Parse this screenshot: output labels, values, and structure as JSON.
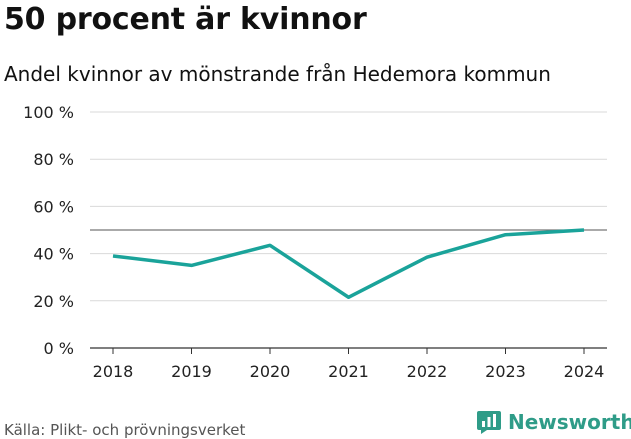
{
  "header": {
    "title": "50 procent är kvinnor",
    "subtitle": "Andel kvinnor av mönstrande från Hedemora kommun"
  },
  "footer": {
    "source": "Källa: Plikt- och prövningsverket",
    "brand": "Newsworthy",
    "brand_icon": "bar-chart-logo-icon",
    "brand_color": "#2f9c88"
  },
  "chart_data": {
    "type": "line",
    "title": "50 procent är kvinnor",
    "subtitle": "Andel kvinnor av mönstrande från Hedemora kommun",
    "x": [
      "2018",
      "2019",
      "2020",
      "2021",
      "2022",
      "2023",
      "2024"
    ],
    "series": [
      {
        "values": [
          39,
          35,
          43.5,
          21.5,
          38.5,
          48,
          50
        ],
        "color": "#1aa39a"
      }
    ],
    "reference_line": {
      "value": 50,
      "color": "#777777"
    },
    "ylim": [
      0,
      100
    ],
    "yticks": [
      0,
      20,
      40,
      60,
      80,
      100
    ],
    "ytick_labels": [
      "0 %",
      "20 %",
      "40 %",
      "60 %",
      "80 %",
      "100 %"
    ],
    "xlabel": "",
    "ylabel": "",
    "grid": true,
    "legend": "none"
  }
}
